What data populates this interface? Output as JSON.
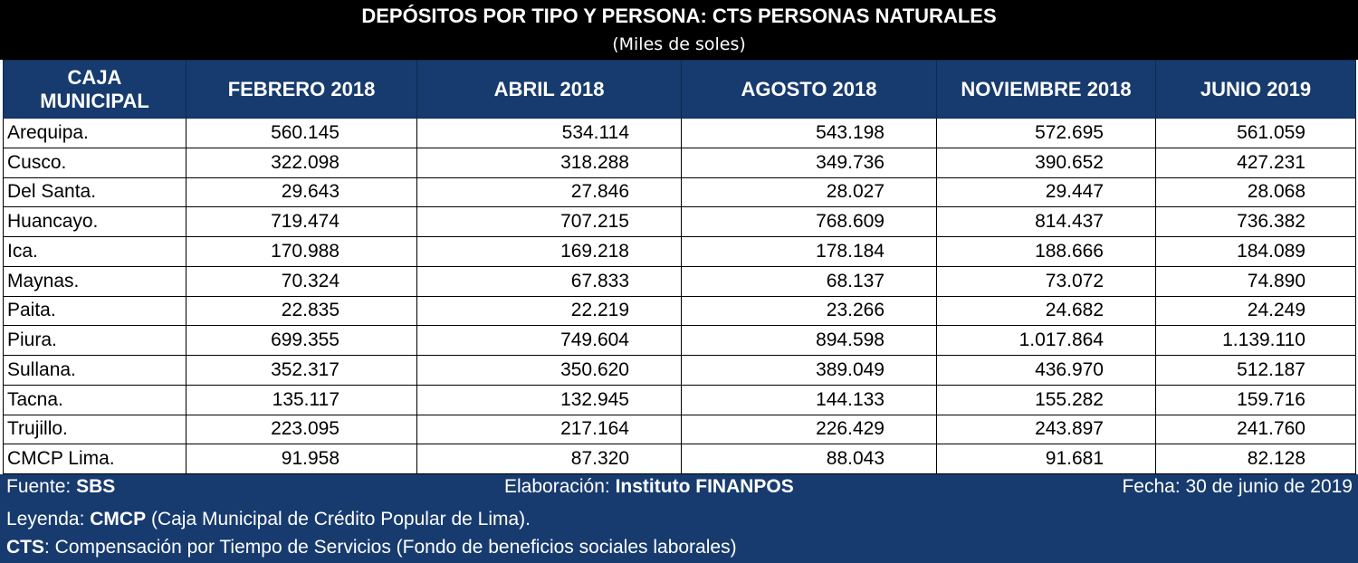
{
  "header": {
    "title": "DEPÓSITOS POR TIPO Y PERSONA: CTS PERSONAS NATURALES",
    "subtitle": "(Miles de soles)"
  },
  "table": {
    "col0_line1": "CAJA",
    "col0_line2": "MUNICIPAL",
    "columns": [
      "FEBRERO 2018",
      "ABRIL 2018",
      "AGOSTO 2018",
      "NOVIEMBRE 2018",
      "JUNIO 2019"
    ],
    "rows": [
      {
        "name": "Arequipa.",
        "values": [
          "560.145",
          "534.114",
          "543.198",
          "572.695",
          "561.059"
        ]
      },
      {
        "name": "Cusco.",
        "values": [
          "322.098",
          "318.288",
          "349.736",
          "390.652",
          "427.231"
        ]
      },
      {
        "name": "Del Santa.",
        "values": [
          "29.643",
          "27.846",
          "28.027",
          "29.447",
          "28.068"
        ]
      },
      {
        "name": "Huancayo.",
        "values": [
          "719.474",
          "707.215",
          "768.609",
          "814.437",
          "736.382"
        ]
      },
      {
        "name": "Ica.",
        "values": [
          "170.988",
          "169.218",
          "178.184",
          "188.666",
          "184.089"
        ]
      },
      {
        "name": "Maynas.",
        "values": [
          "70.324",
          "67.833",
          "68.137",
          "73.072",
          "74.890"
        ]
      },
      {
        "name": "Paita.",
        "values": [
          "22.835",
          "22.219",
          "23.266",
          "24.682",
          "24.249"
        ]
      },
      {
        "name": "Piura.",
        "values": [
          "699.355",
          "749.604",
          "894.598",
          "1.017.864",
          "1.139.110"
        ]
      },
      {
        "name": "Sullana.",
        "values": [
          "352.317",
          "350.620",
          "389.049",
          "436.970",
          "512.187"
        ]
      },
      {
        "name": "Tacna.",
        "values": [
          "135.117",
          "132.945",
          "144.133",
          "155.282",
          "159.716"
        ]
      },
      {
        "name": "Trujillo.",
        "values": [
          "223.095",
          "217.164",
          "226.429",
          "243.897",
          "241.760"
        ]
      },
      {
        "name": "CMCP Lima.",
        "values": [
          "91.958",
          "87.320",
          "88.043",
          "91.681",
          "82.128"
        ]
      }
    ]
  },
  "footer": {
    "source_label": "Fuente:",
    "source_value": "SBS",
    "elab_label": "Elaboración:",
    "elab_value": "Instituto FINANPOS",
    "date_text": "Fecha: 30 de junio de 2019",
    "legend_label": "Leyenda:",
    "legend_abbr": "CMCP",
    "legend_text": "(Caja Municipal de Crédito Popular de Lima).",
    "cts_abbr": "CTS",
    "cts_text": ": Compensación por Tiempo de Servicios (Fondo de beneficios sociales laborales)"
  },
  "colors": {
    "header_bg": "#000000",
    "table_header_bg": "#173b6e",
    "footer_bg": "#173b6e"
  }
}
